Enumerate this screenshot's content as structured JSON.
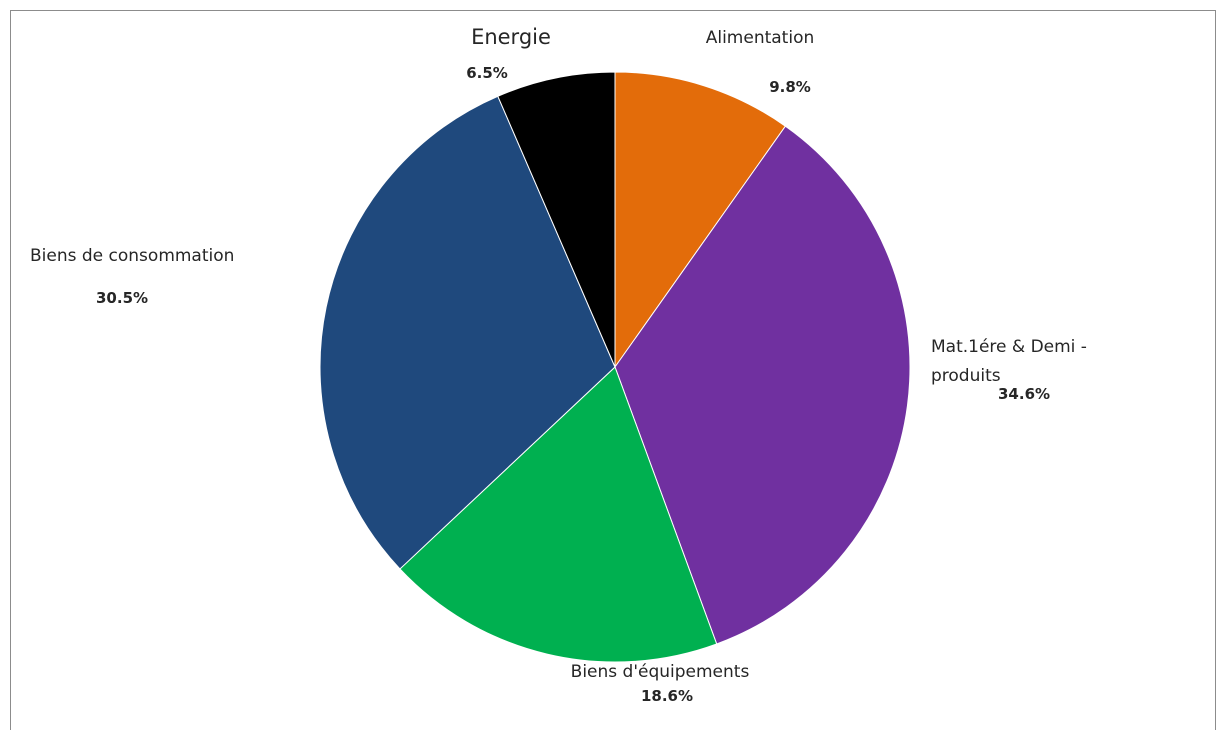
{
  "chart_data": {
    "type": "pie",
    "title": "",
    "start_angle_deg": 0,
    "direction": "clockwise",
    "slices": [
      {
        "label": "Alimentation",
        "value": 9.8,
        "value_label": "9.8%",
        "color": "#E36C0A"
      },
      {
        "label": "Mat.1ére & Demi - produits",
        "value": 34.6,
        "value_label": "34.6%",
        "color": "#7030A0"
      },
      {
        "label": "Biens d'équipements",
        "value": 18.6,
        "value_label": "18.6%",
        "color": "#00B050"
      },
      {
        "label": "Biens de consommation",
        "value": 30.5,
        "value_label": "30.5%",
        "color": "#1F497D"
      },
      {
        "label": "Energie",
        "value": 6.5,
        "value_label": "6.5%",
        "color": "#000000"
      }
    ],
    "legend": "none",
    "labels": "outside, category name with percentage"
  }
}
